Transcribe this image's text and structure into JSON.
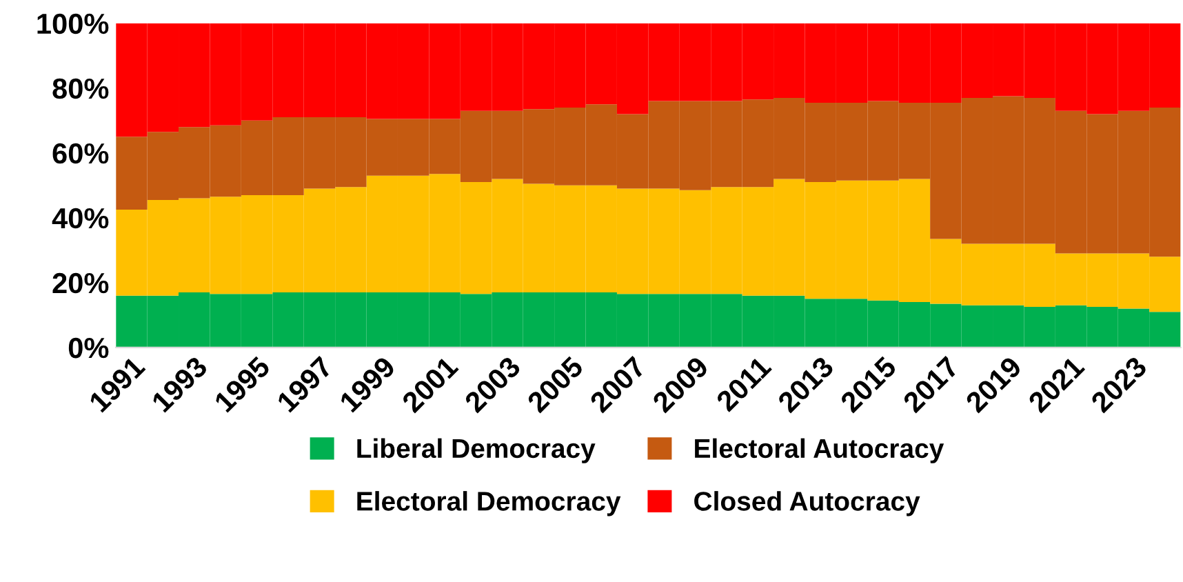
{
  "chart_data": {
    "type": "bar",
    "stacked": true,
    "legend": "bottom",
    "grid": false,
    "categories": [
      "1991",
      null,
      "1993",
      null,
      "1995",
      null,
      "1997",
      null,
      "1999",
      null,
      "2001",
      null,
      "2003",
      null,
      "2005",
      null,
      "2007",
      null,
      "2009",
      null,
      "2011",
      null,
      "2013",
      null,
      "2015",
      null,
      "2017",
      null,
      "2019",
      null,
      "2021",
      null,
      "2023",
      null
    ],
    "ylim": [
      0,
      100
    ],
    "yticks": [
      {
        "value": 0,
        "label": "0%"
      },
      {
        "value": 20,
        "label": "20%"
      },
      {
        "value": 40,
        "label": "40%"
      },
      {
        "value": 60,
        "label": "60%"
      },
      {
        "value": 80,
        "label": "80%"
      },
      {
        "value": 100,
        "label": "100%"
      }
    ],
    "series": [
      {
        "name": "Liberal Democracy",
        "color": "#00b050",
        "values": [
          16,
          16,
          17,
          16.5,
          16.5,
          17,
          17,
          17,
          17,
          17,
          17,
          16.5,
          17,
          17,
          17,
          17,
          16.5,
          16.5,
          16.5,
          16.5,
          16,
          16,
          15,
          15,
          14.5,
          14,
          13.5,
          13,
          13,
          12.5,
          13,
          12.5,
          12,
          11
        ]
      },
      {
        "name": "Electoral Democracy",
        "color": "#ffc000",
        "values": [
          26.5,
          29.5,
          29,
          30,
          30.5,
          30,
          32,
          32.5,
          36,
          36,
          36.5,
          34.5,
          35,
          33.5,
          33,
          33,
          32.5,
          32.5,
          32,
          33,
          33.5,
          36,
          36,
          36.5,
          37,
          38,
          20,
          19,
          19,
          19.5,
          16,
          16.5,
          17,
          17
        ]
      },
      {
        "name": "Electoral Autocracy",
        "color": "#c55a11",
        "values": [
          22.5,
          21,
          22,
          22,
          23,
          24,
          22,
          21.5,
          17.5,
          17.5,
          17,
          22,
          21,
          23,
          24,
          25,
          23,
          27,
          27.5,
          26.5,
          27,
          25,
          24.5,
          24,
          24.5,
          23.5,
          42,
          45,
          45.5,
          45,
          44,
          43,
          44,
          46
        ]
      },
      {
        "name": "Closed Autocracy",
        "color": "#ff0000",
        "values": [
          35,
          33.5,
          32,
          31.5,
          30,
          29,
          29,
          29,
          29.5,
          29.5,
          29.5,
          27,
          27,
          26.5,
          26,
          25,
          28,
          24,
          24,
          24,
          23.5,
          23,
          24.5,
          24.5,
          24,
          24.5,
          24.5,
          23,
          22.5,
          23,
          27,
          28,
          27,
          26
        ]
      }
    ]
  }
}
